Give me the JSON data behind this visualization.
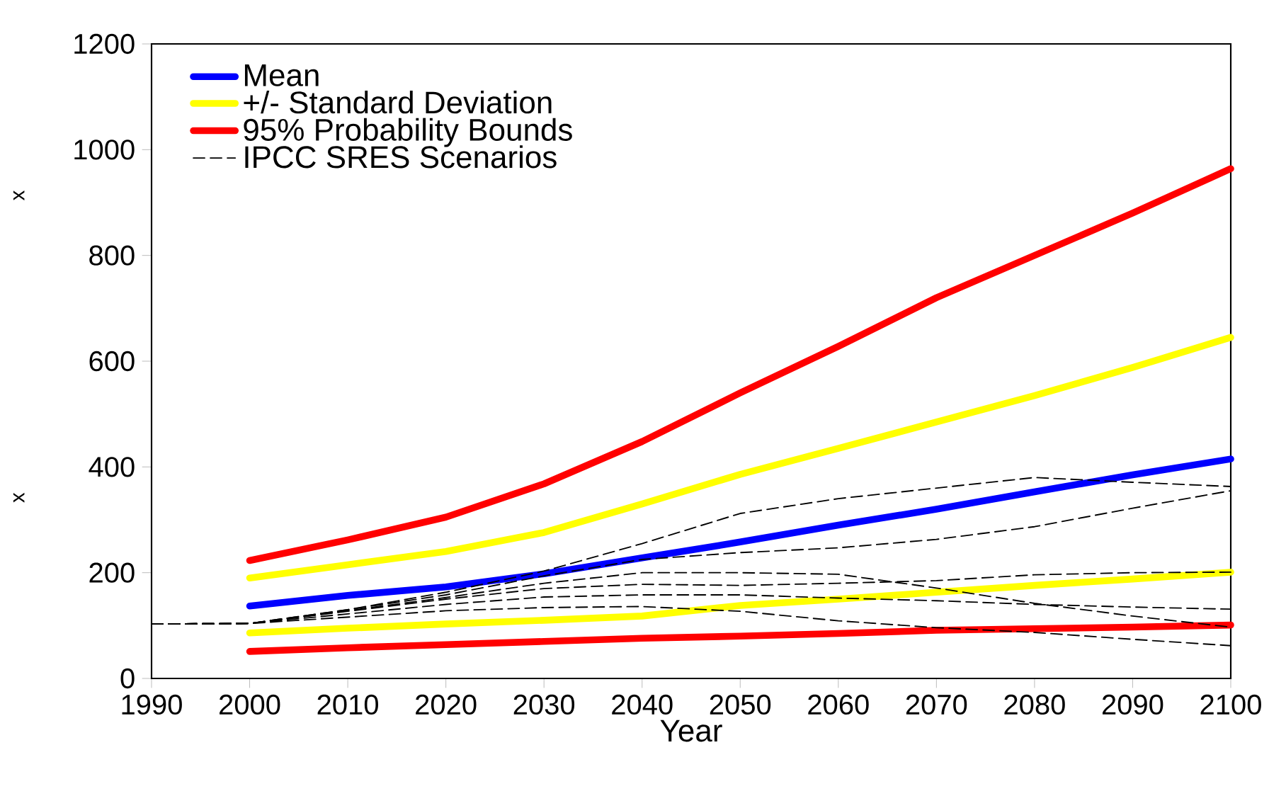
{
  "chart_data": {
    "type": "line",
    "xlabel": "Year",
    "x": [
      1990,
      2000,
      2010,
      2020,
      2030,
      2040,
      2050,
      2060,
      2070,
      2080,
      2090,
      2100
    ],
    "xlim": [
      1990,
      2100
    ],
    "xticks": [
      1990,
      2000,
      2010,
      2020,
      2030,
      2040,
      2050,
      2060,
      2070,
      2080,
      2090,
      2100
    ],
    "ylim": [
      0,
      1200
    ],
    "yticks": [
      0,
      200,
      400,
      600,
      800,
      1000,
      1200
    ],
    "legend": "top left",
    "annotations": [
      "x",
      "x"
    ],
    "series": [
      {
        "name": "Mean",
        "color": "#0000ff",
        "values": [
          null,
          137,
          157,
          173,
          198,
          228,
          258,
          290,
          320,
          353,
          385,
          415
        ]
      },
      {
        "name": "+/- Standard Deviation",
        "color": "#ffff00",
        "values": [
          null,
          190,
          215,
          240,
          276,
          330,
          386,
          435,
          485,
          535,
          588,
          645
        ]
      },
      {
        "color": "#ffff00",
        "values": [
          null,
          86,
          95,
          103,
          110,
          118,
          138,
          150,
          163,
          176,
          188,
          201
        ]
      },
      {
        "name": "95% Probability Bounds",
        "color": "#ff0000",
        "values": [
          null,
          223,
          262,
          305,
          368,
          448,
          540,
          628,
          720,
          800,
          880,
          964
        ]
      },
      {
        "color": "#ff0000",
        "values": [
          null,
          51,
          58,
          64,
          70,
          76,
          80,
          85,
          91,
          94,
          97,
          101
        ]
      },
      {
        "name": "IPCC SRES Scenarios",
        "color": "#000000",
        "line_style": "dashed",
        "values": [
          103,
          104,
          130,
          163,
          203,
          255,
          312,
          340,
          360,
          380,
          371,
          363
        ]
      },
      {
        "color": "#000000",
        "line_style": "dashed",
        "values": [
          103,
          104,
          130,
          158,
          194,
          225,
          238,
          247,
          263,
          287,
          322,
          355
        ]
      },
      {
        "color": "#000000",
        "line_style": "dashed",
        "values": [
          103,
          104,
          127,
          150,
          170,
          178,
          176,
          180,
          185,
          196,
          200,
          201
        ]
      },
      {
        "color": "#000000",
        "line_style": "dashed",
        "values": [
          103,
          104,
          128,
          153,
          180,
          200,
          200,
          197,
          171,
          142,
          118,
          97
        ]
      },
      {
        "color": "#000000",
        "line_style": "dashed",
        "values": [
          103,
          104,
          122,
          140,
          154,
          158,
          158,
          152,
          147,
          140,
          135,
          131
        ]
      },
      {
        "color": "#000000",
        "line_style": "dashed",
        "values": [
          103,
          104,
          116,
          128,
          134,
          136,
          127,
          109,
          96,
          87,
          74,
          62
        ]
      }
    ]
  }
}
